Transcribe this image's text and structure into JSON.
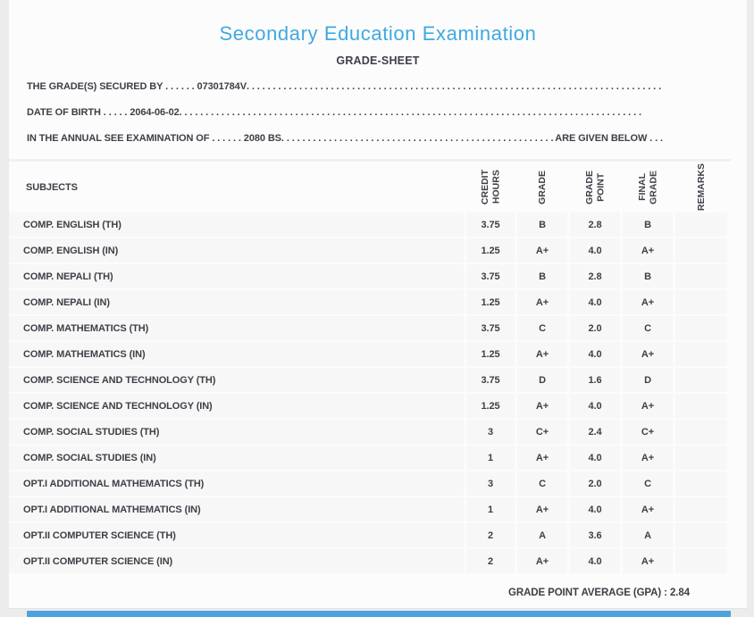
{
  "header": {
    "title": "Secondary Education Examination",
    "subtitle": "GRADE-SHEET"
  },
  "info_lines": [
    {
      "start": "THE GRADE(S) SECURED BY . . . . . . 07301784V ",
      "fill": ". . . . . . . . . . . . . . . . . . . . . . . . . . . . . . . . . . . . . . . . . . . . . . . . . . . . . . . . . . . . . . . . . . . . . . . . . . . . . . . . . . . . . . . .",
      "end": ""
    },
    {
      "start": "DATE OF BIRTH . . . . . 2064-06-02 ",
      "fill": ". . . . . . . . . . . . . . . . . . . . . . . . . . . . . . . . . . . . . . . . . . . . . . . . . . . . . . . . . . . . . . . . . . . . . . . . . . . . . . . . . . . . . . . .",
      "end": ""
    },
    {
      "start": "IN THE ANNUAL SEE EXAMINATION OF . . . . . . 2080 BS ",
      "fill": ". . . . . . . . . . . . . . . . . . . . . . . . . . . . . . . . . . . . . . . . . . . . . . . . . . . . . . . . . . . . . . . . . . . . . . . . . . . . . . . . . . . . . . . .",
      "end": " ARE GIVEN BELOW . . ."
    }
  ],
  "table": {
    "columns": [
      "SUBJECTS",
      "CREDIT\nHOURS",
      "GRADE",
      "GRADE\nPOINT",
      "FINAL\nGRADE",
      "REMARKS"
    ],
    "rows": [
      [
        "COMP. ENGLISH (TH)",
        "3.75",
        "B",
        "2.8",
        "B",
        ""
      ],
      [
        "COMP. ENGLISH (IN)",
        "1.25",
        "A+",
        "4.0",
        "A+",
        ""
      ],
      [
        "COMP. NEPALI (TH)",
        "3.75",
        "B",
        "2.8",
        "B",
        ""
      ],
      [
        "COMP. NEPALI (IN)",
        "1.25",
        "A+",
        "4.0",
        "A+",
        ""
      ],
      [
        "COMP. MATHEMATICS (TH)",
        "3.75",
        "C",
        "2.0",
        "C",
        ""
      ],
      [
        "COMP. MATHEMATICS (IN)",
        "1.25",
        "A+",
        "4.0",
        "A+",
        ""
      ],
      [
        "COMP. SCIENCE AND TECHNOLOGY (TH)",
        "3.75",
        "D",
        "1.6",
        "D",
        ""
      ],
      [
        "COMP. SCIENCE AND TECHNOLOGY (IN)",
        "1.25",
        "A+",
        "4.0",
        "A+",
        ""
      ],
      [
        "COMP. SOCIAL STUDIES (TH)",
        "3",
        "C+",
        "2.4",
        "C+",
        ""
      ],
      [
        "COMP. SOCIAL STUDIES (IN)",
        "1",
        "A+",
        "4.0",
        "A+",
        ""
      ],
      [
        "OPT.I ADDITIONAL MATHEMATICS (TH)",
        "3",
        "C",
        "2.0",
        "C",
        ""
      ],
      [
        "OPT.I ADDITIONAL MATHEMATICS (IN)",
        "1",
        "A+",
        "4.0",
        "A+",
        ""
      ],
      [
        "OPT.II COMPUTER SCIENCE (TH)",
        "2",
        "A",
        "3.6",
        "A",
        ""
      ],
      [
        "OPT.II COMPUTER SCIENCE (IN)",
        "2",
        "A+",
        "4.0",
        "A+",
        ""
      ]
    ]
  },
  "summary": {
    "gpa_label": "GRADE POINT AVERAGE (GPA) : 2.84"
  },
  "colors": {
    "title_blue": "#3fa9e1",
    "footer_bar_blue": "#4ba3dc",
    "text_dark": "#3e3f47",
    "row_bg": "#f7f7f7"
  }
}
